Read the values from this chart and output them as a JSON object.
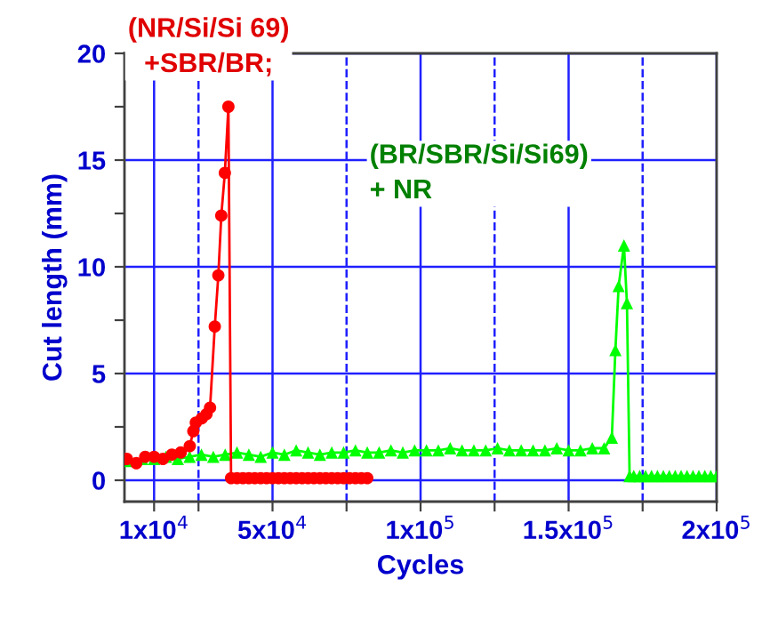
{
  "chart_data": {
    "type": "line",
    "xlabel": "Cycles",
    "ylabel": "Cut length (mm)",
    "xlim": [
      0,
      200000
    ],
    "ylim": [
      -1,
      20
    ],
    "xticks": [
      {
        "value": 10000,
        "label": "1x10$^{4}$"
      },
      {
        "value": 25000,
        "label": null
      },
      {
        "value": 50000,
        "label": "5x10$^{4}$"
      },
      {
        "value": 75000,
        "label": null
      },
      {
        "value": 100000,
        "label": "1x10$^{5}$"
      },
      {
        "value": 125000,
        "label": null
      },
      {
        "value": 150000,
        "label": "1.5x10$^{5}$"
      },
      {
        "value": 175000,
        "label": null
      },
      {
        "value": 200000,
        "label": "2x10$^{5}$"
      }
    ],
    "yticks": [
      0,
      {
        "value": 2.5,
        "label": null
      },
      5,
      {
        "value": 7.5,
        "label": null
      },
      10,
      {
        "value": 12.5,
        "label": null
      },
      15,
      {
        "value": 17.5,
        "label": null
      },
      20
    ],
    "grid": true,
    "line_style": "solid",
    "series": [
      {
        "name": "(NR/Si/Si 69)\n+SBR/BR;",
        "color": "#ff0000",
        "marker": "circle",
        "x": [
          800,
          4000,
          7000,
          10000,
          13000,
          16000,
          19000,
          22050,
          23250,
          24100,
          26100,
          27700,
          28900,
          30500,
          31700,
          32700,
          33900,
          35100,
          36000,
          38000,
          40000,
          42000,
          44000,
          46000,
          48000,
          50000,
          52000,
          54000,
          56000,
          58000,
          60000,
          62000,
          64000,
          66000,
          68000,
          70000,
          72000,
          74000,
          76000,
          78000,
          80000,
          82000
        ],
        "values": [
          1.0,
          0.8,
          1.1,
          1.1,
          1.0,
          1.2,
          1.3,
          1.6,
          2.3,
          2.7,
          2.9,
          3.1,
          3.4,
          7.2,
          9.6,
          12.4,
          14.4,
          17.5,
          0.1,
          0.1,
          0.1,
          0.1,
          0.1,
          0.1,
          0.1,
          0.1,
          0.1,
          0.1,
          0.1,
          0.1,
          0.1,
          0.1,
          0.1,
          0.1,
          0.1,
          0.1,
          0.1,
          0.1,
          0.1,
          0.1,
          0.1,
          0.1
        ]
      },
      {
        "name": "(BR/SBR/Si/Si69)\n+ NR",
        "color": "#00ff00",
        "marker": "triangle",
        "x": [
          2000,
          6000,
          10000,
          14000,
          18000,
          22000,
          26000,
          30000,
          34000,
          38000,
          42000,
          46000,
          50000,
          54000,
          58000,
          62000,
          66000,
          70000,
          74000,
          78000,
          82000,
          86000,
          90000,
          94000,
          98000,
          102000,
          106000,
          110000,
          114000,
          118000,
          122000,
          126000,
          130000,
          134000,
          138000,
          142000,
          146000,
          150000,
          154000,
          158000,
          162000,
          164600,
          165800,
          166900,
          168700,
          169700,
          170600,
          172000,
          174000,
          176000,
          178000,
          180000,
          182000,
          184000,
          186000,
          188000,
          190000,
          192000,
          194000,
          196000,
          198000,
          200000
        ],
        "values": [
          0.9,
          1.0,
          1.0,
          1.1,
          1.0,
          1.1,
          1.2,
          1.1,
          1.2,
          1.3,
          1.2,
          1.1,
          1.3,
          1.2,
          1.4,
          1.3,
          1.2,
          1.3,
          1.3,
          1.4,
          1.3,
          1.3,
          1.4,
          1.3,
          1.4,
          1.4,
          1.4,
          1.5,
          1.4,
          1.4,
          1.4,
          1.5,
          1.4,
          1.4,
          1.4,
          1.4,
          1.5,
          1.4,
          1.4,
          1.5,
          1.5,
          2.0,
          6.1,
          9.1,
          11.0,
          8.3,
          0.2,
          0.2,
          0.2,
          0.2,
          0.2,
          0.2,
          0.2,
          0.2,
          0.2,
          0.2,
          0.2,
          0.2,
          0.2,
          0.2,
          0.2,
          0.2
        ]
      }
    ]
  }
}
